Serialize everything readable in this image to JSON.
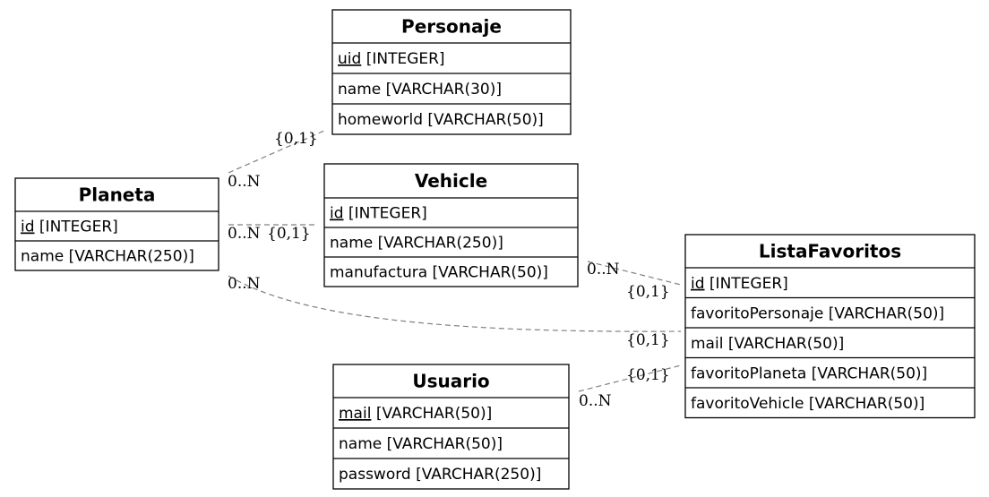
{
  "diagram": {
    "entities": [
      {
        "name": "Personaje",
        "attributes": [
          {
            "field": "uid",
            "type": "[INTEGER]",
            "key": true
          },
          {
            "field": "name",
            "type": "[VARCHAR(30)]",
            "key": false
          },
          {
            "field": "homeworld",
            "type": "[VARCHAR(50)]",
            "key": false
          }
        ]
      },
      {
        "name": "Vehicle",
        "attributes": [
          {
            "field": "id",
            "type": "[INTEGER]",
            "key": true
          },
          {
            "field": "name",
            "type": "[VARCHAR(250)]",
            "key": false
          },
          {
            "field": "manufactura",
            "type": "[VARCHAR(50)]",
            "key": false
          }
        ]
      },
      {
        "name": "Planeta",
        "attributes": [
          {
            "field": "id",
            "type": "[INTEGER]",
            "key": true
          },
          {
            "field": "name",
            "type": "[VARCHAR(250)]",
            "key": false
          }
        ]
      },
      {
        "name": "ListaFavoritos",
        "attributes": [
          {
            "field": "id",
            "type": "[INTEGER]",
            "key": true
          },
          {
            "field": "favoritoPersonaje",
            "type": "[VARCHAR(50)]",
            "key": false
          },
          {
            "field": "mail",
            "type": "[VARCHAR(50)]",
            "key": false
          },
          {
            "field": "favoritoPlaneta",
            "type": "[VARCHAR(50)]",
            "key": false
          },
          {
            "field": "favoritoVehicle",
            "type": "[VARCHAR(50)]",
            "key": false
          }
        ]
      },
      {
        "name": "Usuario",
        "attributes": [
          {
            "field": "mail",
            "type": "[VARCHAR(50)]",
            "key": true
          },
          {
            "field": "name",
            "type": "[VARCHAR(50)]",
            "key": false
          },
          {
            "field": "password",
            "type": "[VARCHAR(250)]",
            "key": false
          }
        ]
      }
    ],
    "relationships": [
      {
        "from": "Planeta",
        "to": "Personaje",
        "from_card": "0..N",
        "to_card": "{0,1}"
      },
      {
        "from": "Planeta",
        "to": "Vehicle",
        "from_card": "0..N",
        "to_card": "{0,1}"
      },
      {
        "from": "Planeta",
        "to": "ListaFavoritos",
        "from_card": "0..N",
        "to_card": "{0,1}"
      },
      {
        "from": "Vehicle",
        "to": "ListaFavoritos",
        "from_card": "0..N",
        "to_card": "{0,1}"
      },
      {
        "from": "Usuario",
        "to": "ListaFavoritos",
        "from_card": "0..N",
        "to_card": "{0,1}"
      }
    ]
  }
}
